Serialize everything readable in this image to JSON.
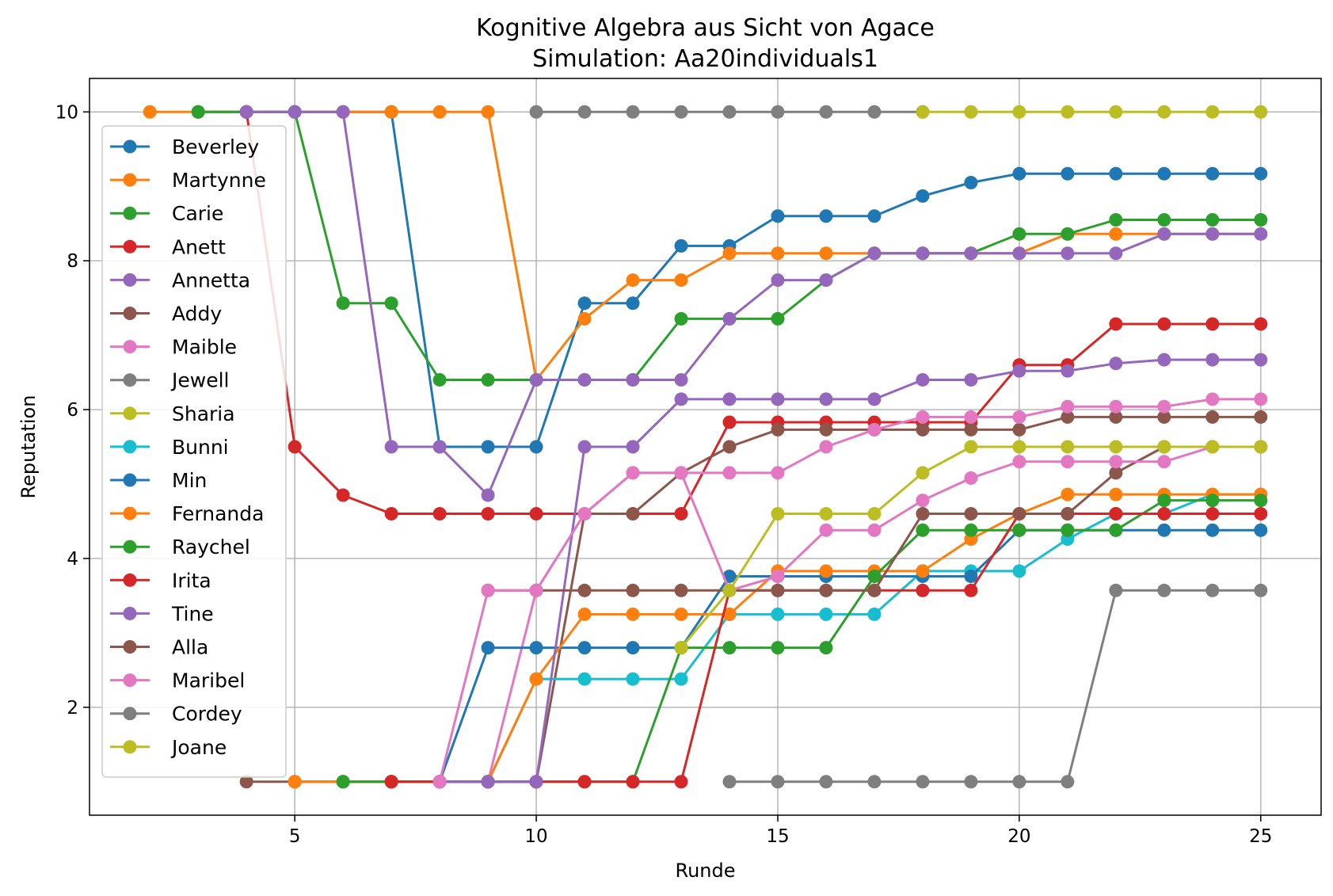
{
  "chart_data": {
    "type": "line",
    "title": "Kognitive Algebra aus Sicht von Agace",
    "subtitle": "Simulation: Aa20individuals1",
    "xlabel": "Runde",
    "ylabel": "Reputation",
    "xlim": [
      0.75,
      26.25
    ],
    "ylim": [
      0.55,
      10.45
    ],
    "xticks": [
      5,
      10,
      15,
      20,
      25
    ],
    "yticks": [
      2,
      4,
      6,
      8,
      10
    ],
    "grid": true,
    "legend_position": "upper-left",
    "series": [
      {
        "name": "Beverley",
        "color": "#1f77b4",
        "x": [
          3,
          4,
          5,
          6,
          7,
          8,
          9,
          10,
          11,
          12,
          13,
          14,
          15,
          16,
          17,
          18,
          19,
          20,
          21,
          22,
          23,
          24,
          25
        ],
        "values": [
          10,
          10,
          10,
          10,
          10,
          5.5,
          5.5,
          5.5,
          7.43,
          7.43,
          8.2,
          8.2,
          8.6,
          8.6,
          8.6,
          8.87,
          9.05,
          9.17,
          9.17,
          9.17,
          9.17,
          9.17,
          9.17
        ]
      },
      {
        "name": "Martynne",
        "color": "#ff7f0e",
        "x": [
          2,
          3,
          4,
          5,
          6,
          7,
          8,
          9,
          10,
          11,
          12,
          13,
          14,
          15,
          16,
          17,
          18,
          19,
          20,
          21,
          22,
          23,
          24,
          25
        ],
        "values": [
          10,
          10,
          10,
          10,
          10,
          10,
          10,
          10,
          6.4,
          7.22,
          7.74,
          7.74,
          8.1,
          8.1,
          8.1,
          8.1,
          8.1,
          8.1,
          8.1,
          8.36,
          8.36,
          8.36,
          8.36,
          8.36
        ]
      },
      {
        "name": "Carie",
        "color": "#2ca02c",
        "x": [
          3,
          4,
          5,
          6,
          7,
          8,
          9,
          10,
          11,
          12,
          13,
          14,
          15,
          16,
          17,
          18,
          19,
          20,
          21,
          22,
          23,
          24,
          25
        ],
        "values": [
          10,
          10,
          10,
          7.43,
          7.43,
          6.4,
          6.4,
          6.4,
          6.4,
          6.4,
          7.22,
          7.22,
          7.22,
          7.74,
          8.1,
          8.1,
          8.1,
          8.36,
          8.36,
          8.55,
          8.55,
          8.55,
          8.55
        ]
      },
      {
        "name": "Anett",
        "color": "#d62728",
        "x": [
          4,
          5,
          6,
          7,
          8,
          9,
          10,
          11,
          12,
          13,
          14,
          15,
          16,
          17,
          18,
          19,
          20,
          21,
          22,
          23,
          24,
          25
        ],
        "values": [
          10,
          5.5,
          4.85,
          4.6,
          4.6,
          4.6,
          4.6,
          4.6,
          4.6,
          4.6,
          5.83,
          5.83,
          5.83,
          5.83,
          5.83,
          5.83,
          6.6,
          6.6,
          7.15,
          7.15,
          7.15,
          7.15
        ]
      },
      {
        "name": "Annetta",
        "color": "#9467bd",
        "x": [
          4,
          5,
          6,
          7,
          8,
          9,
          10,
          11,
          12,
          13,
          14,
          15,
          16,
          17,
          18,
          19,
          20,
          21,
          22,
          23,
          24,
          25
        ],
        "values": [
          10,
          10,
          10,
          5.5,
          5.5,
          4.85,
          6.4,
          6.4,
          6.4,
          6.4,
          7.22,
          7.74,
          7.74,
          8.1,
          8.1,
          8.1,
          8.1,
          8.1,
          8.1,
          8.36,
          8.36,
          8.36
        ]
      },
      {
        "name": "Addy",
        "color": "#8c564b",
        "x": [
          4,
          5,
          6,
          7,
          8,
          9,
          10,
          11,
          12,
          13,
          14,
          15,
          16,
          17,
          18,
          19,
          20,
          21,
          22,
          23,
          24,
          25
        ],
        "values": [
          1,
          1,
          1,
          1,
          1,
          1,
          1,
          4.6,
          4.6,
          5.15,
          5.5,
          5.73,
          5.73,
          5.73,
          5.73,
          5.73,
          5.73,
          5.9,
          5.9,
          5.9,
          5.9,
          5.9
        ]
      },
      {
        "name": "Maible",
        "color": "#e377c2",
        "x": [
          5,
          6,
          7,
          8,
          9,
          10,
          11,
          12,
          13,
          14,
          15,
          16,
          17,
          18,
          19,
          20,
          21,
          22,
          23,
          24,
          25
        ],
        "values": [
          1,
          1,
          1,
          1,
          1,
          3.57,
          4.6,
          5.15,
          5.15,
          5.15,
          5.15,
          5.5,
          5.73,
          5.9,
          5.9,
          5.9,
          6.04,
          6.04,
          6.04,
          6.14,
          6.14
        ]
      },
      {
        "name": "Jewell",
        "color": "#7f7f7f",
        "x": [
          10,
          11,
          12,
          13,
          14,
          15,
          16,
          17,
          18
        ],
        "values": [
          10,
          10,
          10,
          10,
          10,
          10,
          10,
          10,
          10
        ]
      },
      {
        "name": "Sharia",
        "color": "#bcbd22",
        "x": [
          18,
          19,
          20,
          21,
          22,
          23,
          24,
          25
        ],
        "values": [
          10,
          10,
          10,
          10,
          10,
          10,
          10,
          10
        ]
      },
      {
        "name": "Bunni",
        "color": "#17becf",
        "x": [
          6,
          7,
          8,
          9,
          10,
          11,
          12,
          13,
          14,
          15,
          16,
          17,
          18,
          19,
          20,
          21,
          22,
          23,
          24,
          25
        ],
        "values": [
          1,
          1,
          1,
          1,
          2.38,
          2.38,
          2.38,
          2.38,
          3.25,
          3.25,
          3.25,
          3.25,
          3.83,
          3.83,
          3.83,
          4.26,
          4.6,
          4.6,
          4.86,
          4.86
        ]
      },
      {
        "name": "Min",
        "color": "#1f77b4",
        "x": [
          7,
          8,
          9,
          10,
          11,
          12,
          13,
          14,
          15,
          16,
          17,
          18,
          19,
          20,
          21,
          22,
          23,
          24,
          25
        ],
        "values": [
          1,
          1,
          2.8,
          2.8,
          2.8,
          2.8,
          2.8,
          3.76,
          3.76,
          3.76,
          3.76,
          3.76,
          3.76,
          4.38,
          4.38,
          4.38,
          4.38,
          4.38,
          4.38
        ]
      },
      {
        "name": "Fernanda",
        "color": "#ff7f0e",
        "x": [
          5,
          6,
          7,
          8,
          9,
          10,
          11,
          12,
          13,
          14,
          15,
          16,
          17,
          18,
          19,
          20,
          21,
          22,
          23,
          24,
          25
        ],
        "values": [
          1,
          1,
          1,
          1,
          1,
          2.38,
          3.25,
          3.25,
          3.25,
          3.25,
          3.83,
          3.83,
          3.83,
          3.83,
          4.26,
          4.6,
          4.86,
          4.86,
          4.86,
          4.86,
          4.86
        ]
      },
      {
        "name": "Raychel",
        "color": "#2ca02c",
        "x": [
          6,
          7,
          8,
          9,
          10,
          11,
          12,
          13,
          14,
          15,
          16,
          17,
          18,
          19,
          20,
          21,
          22,
          23,
          24,
          25
        ],
        "values": [
          1,
          1,
          1,
          1,
          1,
          1,
          1,
          2.8,
          2.8,
          2.8,
          2.8,
          3.76,
          4.38,
          4.38,
          4.38,
          4.38,
          4.38,
          4.78,
          4.78,
          4.78
        ]
      },
      {
        "name": "Irita",
        "color": "#d62728",
        "x": [
          7,
          8,
          9,
          10,
          11,
          12,
          13,
          14,
          15,
          16,
          17,
          18,
          19,
          20,
          21,
          22,
          23,
          24,
          25
        ],
        "values": [
          1,
          1,
          1,
          1,
          1,
          1,
          1,
          3.57,
          3.57,
          3.57,
          3.57,
          3.57,
          3.57,
          4.6,
          4.6,
          4.6,
          4.6,
          4.6,
          4.6
        ]
      },
      {
        "name": "Tine",
        "color": "#9467bd",
        "x": [
          8,
          9,
          10,
          11,
          12,
          13,
          14,
          15,
          16,
          17,
          18,
          19,
          20,
          21,
          22,
          23,
          24,
          25
        ],
        "values": [
          1,
          1,
          1,
          5.5,
          5.5,
          6.14,
          6.14,
          6.14,
          6.14,
          6.14,
          6.4,
          6.4,
          6.52,
          6.52,
          6.62,
          6.67,
          6.67,
          6.67
        ]
      },
      {
        "name": "Alla",
        "color": "#8c564b",
        "x": [
          9,
          10,
          11,
          12,
          13,
          14,
          15,
          16,
          17,
          18,
          19,
          20,
          21,
          22,
          23,
          24,
          25
        ],
        "values": [
          3.57,
          3.57,
          3.57,
          3.57,
          3.57,
          3.57,
          3.57,
          3.57,
          3.57,
          4.6,
          4.6,
          4.6,
          4.6,
          5.15,
          5.5,
          5.5,
          5.5
        ]
      },
      {
        "name": "Maribel",
        "color": "#e377c2",
        "x": [
          8,
          9,
          10,
          11,
          12,
          13,
          14,
          15,
          16,
          17,
          18,
          19,
          20,
          21,
          22,
          23,
          24,
          25
        ],
        "values": [
          1,
          3.57,
          3.57,
          4.6,
          5.15,
          5.15,
          3.57,
          3.76,
          4.38,
          4.38,
          4.78,
          5.08,
          5.3,
          5.3,
          5.3,
          5.3,
          5.5,
          5.5
        ]
      },
      {
        "name": "Cordey",
        "color": "#7f7f7f",
        "x": [
          14,
          15,
          16,
          17,
          18,
          19,
          20,
          21,
          22,
          23,
          24,
          25
        ],
        "values": [
          1,
          1,
          1,
          1,
          1,
          1,
          1,
          1,
          3.57,
          3.57,
          3.57,
          3.57
        ]
      },
      {
        "name": "Joane",
        "color": "#bcbd22",
        "x": [
          13,
          14,
          15,
          16,
          17,
          18,
          19,
          20,
          21,
          22,
          23,
          24,
          25
        ],
        "values": [
          2.8,
          3.57,
          4.6,
          4.6,
          4.6,
          5.15,
          5.5,
          5.5,
          5.5,
          5.5,
          5.5,
          5.5,
          5.5
        ]
      }
    ]
  }
}
